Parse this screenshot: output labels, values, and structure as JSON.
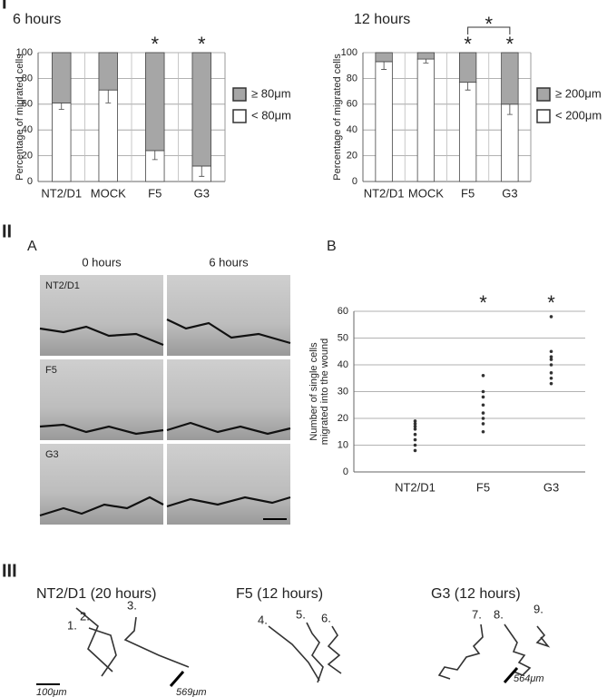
{
  "chart_data": [
    {
      "type": "stacked-bar",
      "title": "6 hours",
      "ylabel": "Percentage of migrated cells",
      "categories": [
        "NT2/D1",
        "MOCK",
        "F5",
        "G3"
      ],
      "series": [
        {
          "name": "< 80μm",
          "color": "#ffffff",
          "values": [
            61,
            71,
            24,
            12
          ],
          "errors": [
            5,
            10,
            7,
            8
          ]
        },
        {
          "name": "≥ 80μm",
          "color": "#a6a6a6",
          "values": [
            39,
            29,
            76,
            88
          ]
        }
      ],
      "ylim": [
        0,
        100
      ],
      "yticks": [
        0,
        20,
        40,
        60,
        80,
        100
      ],
      "grid": true,
      "annotations": [
        {
          "text": "*",
          "x": "F5"
        },
        {
          "text": "*",
          "x": "G3"
        }
      ]
    },
    {
      "type": "stacked-bar",
      "title": "12 hours",
      "ylabel": "Percentage of migrated cells",
      "categories": [
        "NT2/D1",
        "MOCK",
        "F5",
        "G3"
      ],
      "series": [
        {
          "name": "< 200μm",
          "color": "#ffffff",
          "values": [
            93,
            95,
            77,
            60
          ],
          "errors": [
            6,
            3,
            6,
            8
          ]
        },
        {
          "name": "≥ 200μm",
          "color": "#a6a6a6",
          "values": [
            7,
            5,
            23,
            40
          ]
        }
      ],
      "ylim": [
        0,
        100
      ],
      "yticks": [
        0,
        20,
        40,
        60,
        80,
        100
      ],
      "grid": true,
      "annotations": [
        {
          "text": "*",
          "x": "F5"
        },
        {
          "text": "*",
          "x": "G3"
        },
        {
          "text": "*",
          "x": [
            "F5",
            "G3"
          ]
        }
      ]
    },
    {
      "type": "strip",
      "ylabel": [
        "Number of single cells",
        "migrated into the wound"
      ],
      "categories": [
        "NT2/D1",
        "F5",
        "G3"
      ],
      "color": "#333333",
      "values": [
        [
          8,
          10,
          12,
          14,
          16,
          17,
          18,
          19
        ],
        [
          15,
          18,
          20,
          22,
          25,
          28,
          30,
          36
        ],
        [
          33,
          35,
          37,
          40,
          42,
          43,
          45,
          58
        ]
      ],
      "ylim": [
        0,
        60
      ],
      "yticks": [
        0,
        10,
        20,
        30,
        40,
        50,
        60
      ],
      "grid": true,
      "annotations": [
        {
          "text": "*",
          "x": "F5"
        },
        {
          "text": "*",
          "x": "G3"
        }
      ]
    }
  ],
  "panel_labels": [
    "I",
    "II",
    "A",
    "B",
    "III"
  ],
  "micrographs": {
    "columns": [
      "0 hours",
      "6 hours"
    ],
    "rows": [
      "NT2/D1",
      "F5",
      "G3"
    ]
  },
  "tracks": [
    {
      "title": "NT2/D1 (20 hours)",
      "labels": [
        "1.",
        "2.",
        "3."
      ],
      "distance": "569μm"
    },
    {
      "title": "F5 (12 hours)",
      "labels": [
        "4.",
        "5.",
        "6."
      ]
    },
    {
      "title": "G3 (12 hours)",
      "labels": [
        "7.",
        "8.",
        "9."
      ],
      "distance": "564μm"
    }
  ],
  "scale_bar": "100μm"
}
